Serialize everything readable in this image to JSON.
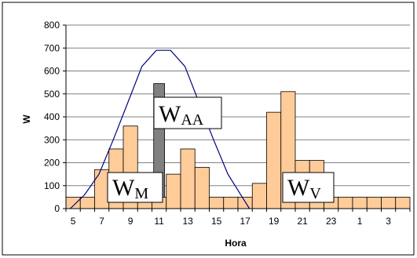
{
  "chart_data": {
    "type": "bar",
    "xlabel": "Hora",
    "ylabel": "W",
    "ylim": [
      0,
      800
    ],
    "yticks": [
      0,
      100,
      200,
      300,
      400,
      500,
      600,
      700,
      800
    ],
    "grid": "horizontal",
    "categories": [
      5,
      6,
      7,
      8,
      9,
      10,
      11,
      12,
      13,
      14,
      15,
      16,
      17,
      18,
      19,
      20,
      21,
      22,
      23,
      24,
      1,
      2,
      3,
      4
    ],
    "tick_labels": [
      "5",
      "7",
      "9",
      "11",
      "13",
      "15",
      "17",
      "19",
      "21",
      "23",
      "1",
      "3"
    ],
    "series": [
      {
        "values": [
          50,
          50,
          170,
          260,
          360,
          150,
          50,
          150,
          260,
          180,
          50,
          50,
          50,
          110,
          420,
          510,
          210,
          210,
          50,
          50,
          50,
          50,
          50,
          50
        ]
      },
      {
        "values": [
          0,
          0,
          0,
          0,
          0,
          0,
          495,
          0,
          0,
          0,
          0,
          0,
          0,
          0,
          0,
          0,
          0,
          0,
          0,
          0,
          0,
          0,
          0,
          0
        ]
      },
      {
        "type": "line",
        "points": [
          [
            5.3,
            0
          ],
          [
            6.3,
            60
          ],
          [
            7.3,
            150
          ],
          [
            8.3,
            300
          ],
          [
            9.3,
            460
          ],
          [
            10.3,
            620
          ],
          [
            11.3,
            690
          ],
          [
            12.3,
            690
          ],
          [
            13.3,
            620
          ],
          [
            14.3,
            460
          ],
          [
            15.3,
            300
          ],
          [
            16.3,
            150
          ],
          [
            17.3,
            50
          ],
          [
            17.8,
            0
          ]
        ]
      }
    ],
    "annotations": [
      {
        "base": "W",
        "sub": "M"
      },
      {
        "base": "W",
        "sub": "AA"
      },
      {
        "base": "W",
        "sub": "V"
      }
    ],
    "colors": {
      "bar": "#FFCC99",
      "bar_stroke": "#000000",
      "bar_highlight": "#808080",
      "line": "#000080",
      "grid": "#808080",
      "frame": "#000000"
    }
  }
}
